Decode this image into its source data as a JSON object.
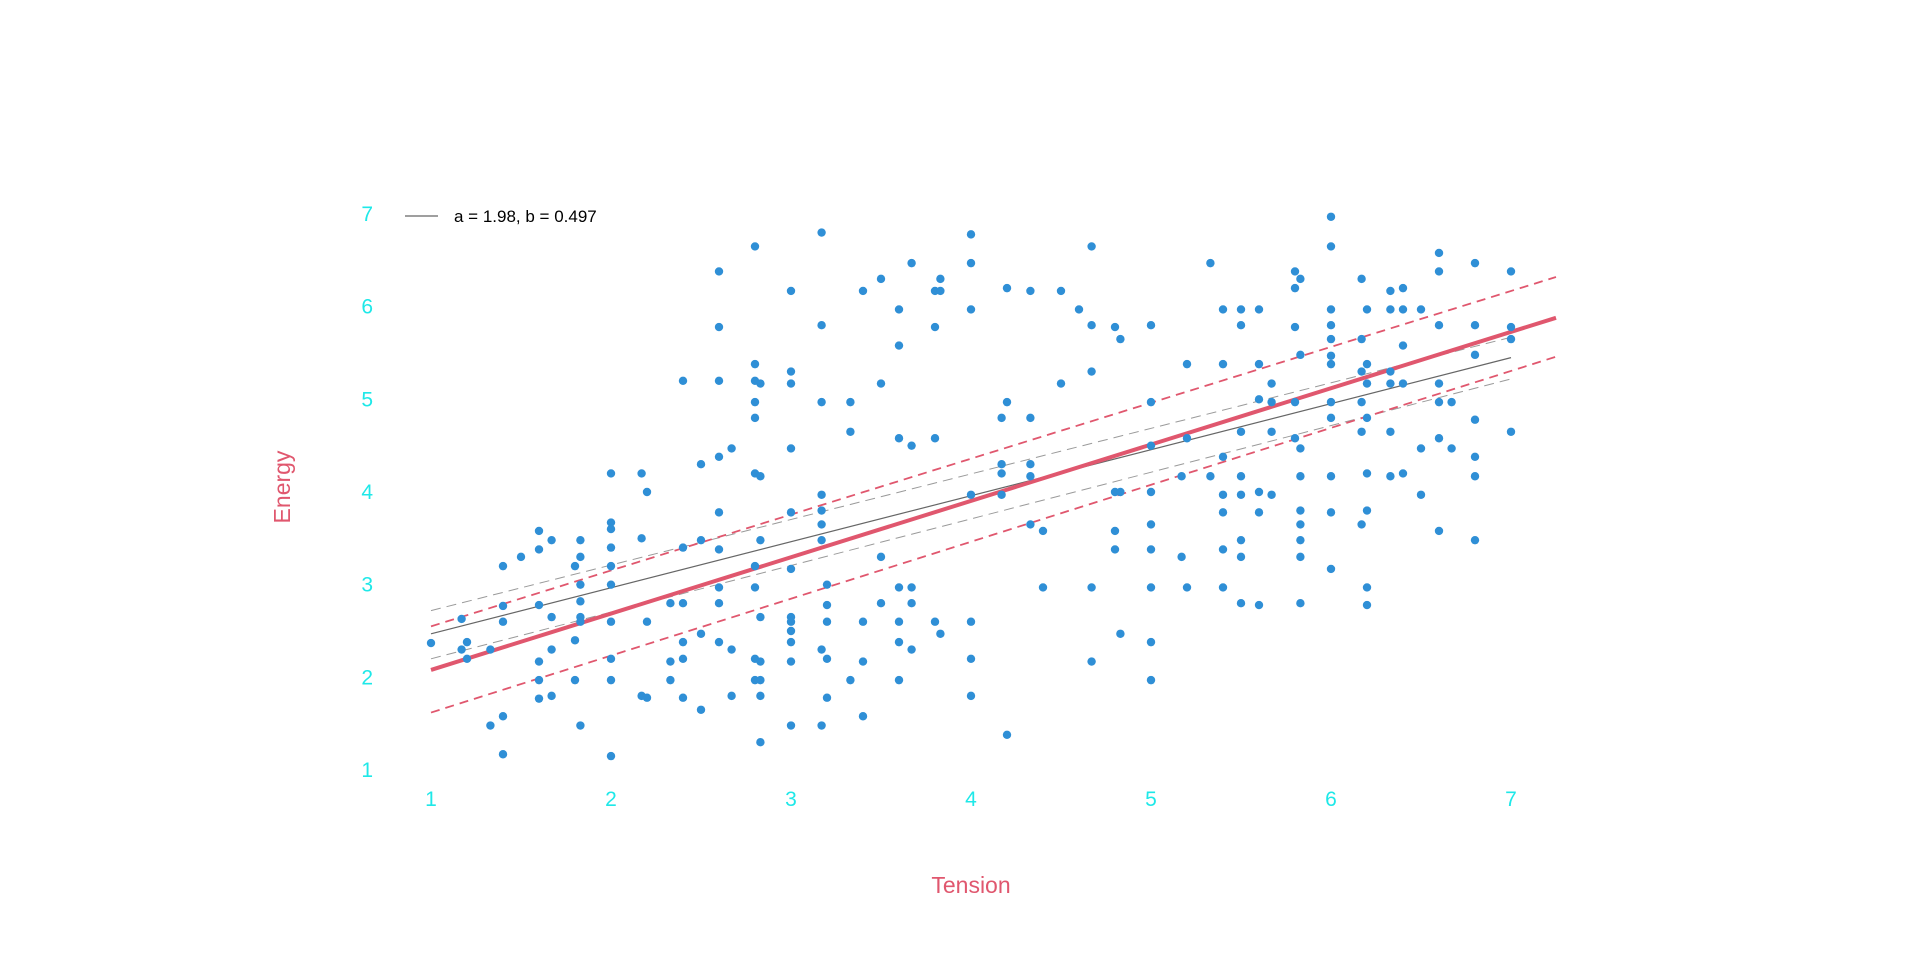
{
  "colors": {
    "background": "#ffffff",
    "points": "#2f8fd6",
    "tick_labels": "#1ee8e8",
    "axis_titles": "#e0576e",
    "fit_line": "#e0576e",
    "fit_ci": "#e0576e",
    "reference_line": "#666666",
    "reference_ci": "#9a9a9a"
  },
  "chart_data": {
    "type": "scatter",
    "title": "",
    "xlabel": "Tension",
    "ylabel": "Energy",
    "xlim": [
      0.93,
      7.25
    ],
    "ylim": [
      1,
      7
    ],
    "x_ticks": [
      1,
      2,
      3,
      4,
      5,
      6,
      7
    ],
    "y_ticks": [
      1,
      2,
      3,
      4,
      5,
      6,
      7
    ],
    "grid": false,
    "legend": {
      "placement": "top-left",
      "entries": [
        {
          "label": "a = 1.98, b = 0.497",
          "line": "reference"
        }
      ]
    },
    "lines": [
      {
        "role": "fit",
        "style": "solid-thick",
        "x": [
          1,
          7.25
        ],
        "y": [
          2.08,
          5.88
        ]
      },
      {
        "role": "fit-ci-upper",
        "style": "dashed",
        "x": [
          1,
          7.25
        ],
        "y": [
          2.55,
          6.32
        ]
      },
      {
        "role": "fit-ci-lower",
        "style": "dashed",
        "x": [
          1,
          7.25
        ],
        "y": [
          1.62,
          5.46
        ]
      },
      {
        "role": "reference",
        "style": "solid-thin",
        "x": [
          1,
          7
        ],
        "y": [
          2.47,
          5.45
        ]
      },
      {
        "role": "reference-ci-upper",
        "style": "dashed-thin",
        "x": [
          1,
          7
        ],
        "y": [
          2.72,
          5.67
        ]
      },
      {
        "role": "reference-ci-lower",
        "style": "dashed-thin",
        "x": [
          1,
          7
        ],
        "y": [
          2.2,
          5.22
        ]
      }
    ],
    "points": [
      [
        1,
        2.37
      ],
      [
        1.17,
        2.63
      ],
      [
        1.17,
        2.3
      ],
      [
        1.2,
        2.38
      ],
      [
        1.2,
        2.2
      ],
      [
        1.33,
        2.3
      ],
      [
        1.33,
        1.48
      ],
      [
        1.4,
        1.58
      ],
      [
        1.4,
        1.17
      ],
      [
        1.4,
        3.2
      ],
      [
        1.4,
        2.77
      ],
      [
        1.4,
        2.6
      ],
      [
        1.5,
        3.3
      ],
      [
        1.6,
        3.58
      ],
      [
        1.6,
        3.38
      ],
      [
        1.6,
        2.78
      ],
      [
        1.6,
        2.17
      ],
      [
        1.6,
        1.97
      ],
      [
        1.6,
        1.77
      ],
      [
        1.67,
        3.48
      ],
      [
        1.67,
        2.65
      ],
      [
        1.67,
        2.3
      ],
      [
        1.67,
        1.8
      ],
      [
        1.8,
        3.2
      ],
      [
        1.8,
        2.4
      ],
      [
        1.8,
        1.97
      ],
      [
        1.83,
        3.48
      ],
      [
        1.83,
        3.3
      ],
      [
        1.83,
        3
      ],
      [
        1.83,
        2.82
      ],
      [
        1.83,
        2.65
      ],
      [
        1.83,
        2.6
      ],
      [
        1.83,
        1.48
      ],
      [
        2,
        4.2
      ],
      [
        2,
        3.67
      ],
      [
        2,
        3.6
      ],
      [
        2,
        3.4
      ],
      [
        2,
        3.2
      ],
      [
        2,
        3
      ],
      [
        2,
        2.6
      ],
      [
        2,
        2.2
      ],
      [
        2,
        1.97
      ],
      [
        2,
        1.15
      ],
      [
        2.17,
        4.2
      ],
      [
        2.17,
        3.5
      ],
      [
        2.17,
        1.8
      ],
      [
        2.2,
        4
      ],
      [
        2.2,
        2.6
      ],
      [
        2.2,
        1.78
      ],
      [
        2.33,
        2.8
      ],
      [
        2.33,
        2.17
      ],
      [
        2.33,
        1.97
      ],
      [
        2.4,
        5.2
      ],
      [
        2.4,
        3.4
      ],
      [
        2.4,
        2.8
      ],
      [
        2.4,
        2.38
      ],
      [
        2.4,
        2.2
      ],
      [
        2.4,
        1.78
      ],
      [
        2.5,
        4.3
      ],
      [
        2.5,
        3.48
      ],
      [
        2.5,
        2.47
      ],
      [
        2.5,
        1.65
      ],
      [
        2.6,
        6.38
      ],
      [
        2.6,
        5.78
      ],
      [
        2.6,
        5.2
      ],
      [
        2.6,
        4.38
      ],
      [
        2.6,
        3.78
      ],
      [
        2.6,
        3.38
      ],
      [
        2.6,
        2.97
      ],
      [
        2.6,
        2.8
      ],
      [
        2.6,
        2.38
      ],
      [
        2.67,
        4.47
      ],
      [
        2.67,
        2.3
      ],
      [
        2.67,
        1.8
      ],
      [
        2.8,
        6.65
      ],
      [
        2.8,
        5.38
      ],
      [
        2.8,
        5.2
      ],
      [
        2.8,
        4.8
      ],
      [
        2.8,
        4.97
      ],
      [
        2.8,
        4.2
      ],
      [
        2.8,
        3.2
      ],
      [
        2.8,
        2.97
      ],
      [
        2.8,
        2.2
      ],
      [
        2.8,
        1.97
      ],
      [
        2.83,
        5.17
      ],
      [
        2.83,
        4.17
      ],
      [
        2.83,
        3.48
      ],
      [
        2.83,
        2.65
      ],
      [
        2.83,
        2.17
      ],
      [
        2.83,
        1.97
      ],
      [
        2.83,
        1.8
      ],
      [
        2.83,
        1.3
      ],
      [
        3,
        6.17
      ],
      [
        3,
        5.3
      ],
      [
        3,
        5.17
      ],
      [
        3,
        4.47
      ],
      [
        3,
        3.78
      ],
      [
        3,
        3.17
      ],
      [
        3,
        2.65
      ],
      [
        3,
        2.6
      ],
      [
        3,
        2.5
      ],
      [
        3,
        2.38
      ],
      [
        3,
        2.17
      ],
      [
        3,
        1.48
      ],
      [
        3.17,
        6.8
      ],
      [
        3.17,
        5.8
      ],
      [
        3.17,
        4.97
      ],
      [
        3.17,
        3.97
      ],
      [
        3.17,
        3.8
      ],
      [
        3.17,
        3.65
      ],
      [
        3.17,
        3.48
      ],
      [
        3.17,
        2.3
      ],
      [
        3.17,
        1.48
      ],
      [
        3.2,
        3
      ],
      [
        3.2,
        2.78
      ],
      [
        3.2,
        2.6
      ],
      [
        3.2,
        2.2
      ],
      [
        3.2,
        1.78
      ],
      [
        3.33,
        4.97
      ],
      [
        3.33,
        4.65
      ],
      [
        3.33,
        1.97
      ],
      [
        3.4,
        6.17
      ],
      [
        3.4,
        2.6
      ],
      [
        3.4,
        2.17
      ],
      [
        3.4,
        1.58
      ],
      [
        3.5,
        6.3
      ],
      [
        3.5,
        5.17
      ],
      [
        3.5,
        3.3
      ],
      [
        3.5,
        2.8
      ],
      [
        3.6,
        5.97
      ],
      [
        3.6,
        5.58
      ],
      [
        3.6,
        4.58
      ],
      [
        3.6,
        2.97
      ],
      [
        3.6,
        2.6
      ],
      [
        3.6,
        2.38
      ],
      [
        3.6,
        1.97
      ],
      [
        3.67,
        6.47
      ],
      [
        3.67,
        4.5
      ],
      [
        3.67,
        2.97
      ],
      [
        3.67,
        2.8
      ],
      [
        3.67,
        2.3
      ],
      [
        3.8,
        6.17
      ],
      [
        3.8,
        5.78
      ],
      [
        3.8,
        4.58
      ],
      [
        3.8,
        2.6
      ],
      [
        3.83,
        6.3
      ],
      [
        3.83,
        6.17
      ],
      [
        3.83,
        2.47
      ],
      [
        4,
        6.78
      ],
      [
        4,
        6.47
      ],
      [
        4,
        5.97
      ],
      [
        4,
        3.97
      ],
      [
        4,
        2.6
      ],
      [
        4,
        2.2
      ],
      [
        4,
        1.8
      ],
      [
        4.17,
        4.8
      ],
      [
        4.17,
        4.3
      ],
      [
        4.17,
        4.2
      ],
      [
        4.17,
        3.97
      ],
      [
        4.2,
        6.2
      ],
      [
        4.2,
        4.97
      ],
      [
        4.2,
        1.38
      ],
      [
        4.33,
        6.17
      ],
      [
        4.33,
        4.8
      ],
      [
        4.33,
        4.3
      ],
      [
        4.33,
        4.17
      ],
      [
        4.33,
        3.65
      ],
      [
        4.4,
        3.58
      ],
      [
        4.4,
        2.97
      ],
      [
        4.5,
        6.17
      ],
      [
        4.5,
        5.17
      ],
      [
        4.6,
        5.97
      ],
      [
        4.67,
        6.65
      ],
      [
        4.67,
        5.8
      ],
      [
        4.67,
        5.3
      ],
      [
        4.67,
        2.97
      ],
      [
        4.67,
        2.17
      ],
      [
        4.8,
        5.78
      ],
      [
        4.8,
        4
      ],
      [
        4.8,
        3.58
      ],
      [
        4.8,
        3.38
      ],
      [
        4.83,
        5.65
      ],
      [
        4.83,
        4
      ],
      [
        4.83,
        2.47
      ],
      [
        5,
        5.8
      ],
      [
        5,
        4.97
      ],
      [
        5,
        4.5
      ],
      [
        5,
        4
      ],
      [
        5,
        3.65
      ],
      [
        5,
        3.38
      ],
      [
        5,
        2.97
      ],
      [
        5,
        2.38
      ],
      [
        5,
        1.97
      ],
      [
        5.17,
        4.17
      ],
      [
        5.17,
        3.3
      ],
      [
        5.2,
        5.38
      ],
      [
        5.2,
        4.58
      ],
      [
        5.2,
        2.97
      ],
      [
        5.33,
        6.47
      ],
      [
        5.33,
        4.17
      ],
      [
        5.4,
        5.97
      ],
      [
        5.4,
        5.38
      ],
      [
        5.4,
        4.38
      ],
      [
        5.4,
        3.97
      ],
      [
        5.4,
        3.78
      ],
      [
        5.4,
        3.38
      ],
      [
        5.4,
        2.97
      ],
      [
        5.5,
        5.97
      ],
      [
        5.5,
        5.8
      ],
      [
        5.5,
        4.65
      ],
      [
        5.5,
        4.17
      ],
      [
        5.5,
        3.97
      ],
      [
        5.5,
        3.48
      ],
      [
        5.5,
        3.3
      ],
      [
        5.5,
        2.8
      ],
      [
        5.6,
        5.97
      ],
      [
        5.6,
        5.38
      ],
      [
        5.6,
        5
      ],
      [
        5.6,
        4
      ],
      [
        5.6,
        3.78
      ],
      [
        5.6,
        2.78
      ],
      [
        5.67,
        5.17
      ],
      [
        5.67,
        4.97
      ],
      [
        5.67,
        4.65
      ],
      [
        5.67,
        3.97
      ],
      [
        5.8,
        6.38
      ],
      [
        5.8,
        6.2
      ],
      [
        5.8,
        5.78
      ],
      [
        5.8,
        4.97
      ],
      [
        5.8,
        4.58
      ],
      [
        5.83,
        6.3
      ],
      [
        5.83,
        5.48
      ],
      [
        5.83,
        4.47
      ],
      [
        5.83,
        4.17
      ],
      [
        5.83,
        3.8
      ],
      [
        5.83,
        3.65
      ],
      [
        5.83,
        3.48
      ],
      [
        5.83,
        3.3
      ],
      [
        5.83,
        2.8
      ],
      [
        6,
        6.97
      ],
      [
        6,
        6.65
      ],
      [
        6,
        5.97
      ],
      [
        6,
        5.8
      ],
      [
        6,
        5.65
      ],
      [
        6,
        5.47
      ],
      [
        6,
        5.38
      ],
      [
        6,
        4.97
      ],
      [
        6,
        4.8
      ],
      [
        6,
        4.17
      ],
      [
        6,
        3.78
      ],
      [
        6,
        3.17
      ],
      [
        6.17,
        6.3
      ],
      [
        6.17,
        5.65
      ],
      [
        6.17,
        5.3
      ],
      [
        6.17,
        4.97
      ],
      [
        6.17,
        4.65
      ],
      [
        6.17,
        3.65
      ],
      [
        6.2,
        5.97
      ],
      [
        6.2,
        5.38
      ],
      [
        6.2,
        5.17
      ],
      [
        6.2,
        4.8
      ],
      [
        6.2,
        4.2
      ],
      [
        6.2,
        3.8
      ],
      [
        6.2,
        2.97
      ],
      [
        6.2,
        2.78
      ],
      [
        6.33,
        6.17
      ],
      [
        6.33,
        5.97
      ],
      [
        6.33,
        5.3
      ],
      [
        6.33,
        5.17
      ],
      [
        6.33,
        4.65
      ],
      [
        6.33,
        4.17
      ],
      [
        6.4,
        6.2
      ],
      [
        6.4,
        5.97
      ],
      [
        6.4,
        5.58
      ],
      [
        6.4,
        5.17
      ],
      [
        6.4,
        4.2
      ],
      [
        6.5,
        5.97
      ],
      [
        6.5,
        4.47
      ],
      [
        6.5,
        3.97
      ],
      [
        6.6,
        6.58
      ],
      [
        6.6,
        6.38
      ],
      [
        6.6,
        5.8
      ],
      [
        6.6,
        5.17
      ],
      [
        6.6,
        4.97
      ],
      [
        6.6,
        4.58
      ],
      [
        6.6,
        3.58
      ],
      [
        6.67,
        4.97
      ],
      [
        6.67,
        4.47
      ],
      [
        6.8,
        6.47
      ],
      [
        6.8,
        5.8
      ],
      [
        6.8,
        5.48
      ],
      [
        6.8,
        4.78
      ],
      [
        6.8,
        4.38
      ],
      [
        6.8,
        4.17
      ],
      [
        6.8,
        3.48
      ],
      [
        7,
        6.38
      ],
      [
        7,
        5.78
      ],
      [
        7,
        5.65
      ],
      [
        7,
        4.65
      ]
    ]
  }
}
